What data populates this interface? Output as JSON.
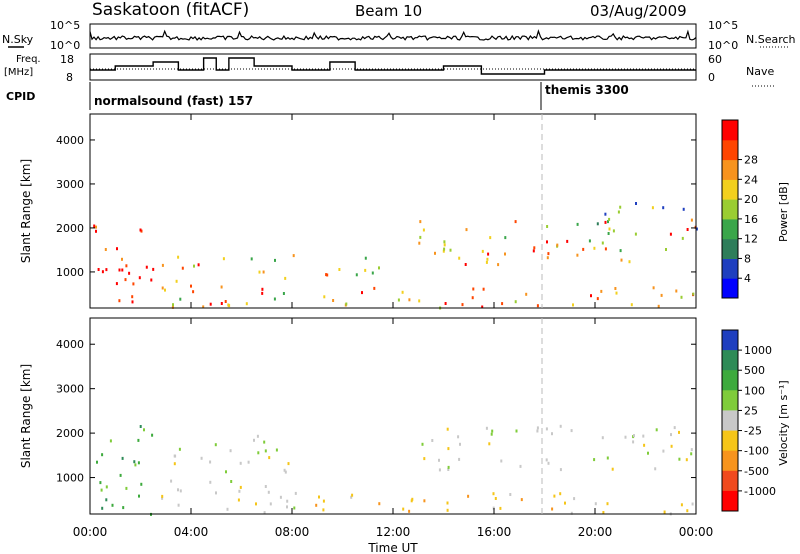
{
  "header": {
    "station": "Saskatoon (fitACF)",
    "beam": "Beam 10",
    "date": "03/Aug/2009"
  },
  "aux_labels": {
    "nsky": "N.Sky",
    "nsearch": "N.Search",
    "freq_line1": "Freq.",
    "freq_line2": "[MHz]",
    "nave": "Nave",
    "cpid": "CPID",
    "noise_tick_top": "10^5",
    "noise_tick_bottom": "10^0",
    "freq_tick_top": "18",
    "freq_tick_bottom": "8",
    "nave_tick_top": "60",
    "nave_tick_bottom": "0"
  },
  "cpid_entries": [
    {
      "label": "normalsound (fast) 157",
      "start_hour": 0
    },
    {
      "label": "themis 3300",
      "start_hour": 18
    }
  ],
  "x_axis": {
    "label": "Time UT",
    "ticks": [
      "00:00",
      "04:00",
      "08:00",
      "12:00",
      "16:00",
      "20:00",
      "00:00"
    ],
    "range_hours": [
      0,
      24
    ]
  },
  "y_axis": {
    "label": "Slant Range [km]",
    "ticks": [
      "1000",
      "2000",
      "3000",
      "4000"
    ],
    "range_km": [
      180,
      4590
    ]
  },
  "power_scale": {
    "label": "Power [dB]",
    "ticks": [
      "4",
      "8",
      "12",
      "16",
      "20",
      "24",
      "28"
    ],
    "colors": [
      "#0000ff",
      "#1f3fbf",
      "#2e7d5a",
      "#3aa64a",
      "#9acd32",
      "#f2d01e",
      "#f7931e",
      "#ff4500",
      "#ff0000"
    ]
  },
  "velocity_scale": {
    "label": "Velocity [m s⁻¹]",
    "ticks": [
      "1000",
      "500",
      "100",
      "25",
      "-25",
      "-100",
      "-500",
      "-1000"
    ],
    "colors": [
      "#1f3fbf",
      "#2e8b57",
      "#3daa3d",
      "#7fcc3a",
      "#c8c8c8",
      "#f5c518",
      "#f7941d",
      "#f04a1e",
      "#ff0000"
    ]
  },
  "chart_data": [
    {
      "type": "heatmap",
      "title": "Power",
      "xlabel": "Time UT",
      "ylabel": "Slant Range [km]",
      "xlim_hours": [
        0,
        24
      ],
      "ylim_km": [
        180,
        4590
      ],
      "colorbar_label": "Power [dB]",
      "scatter_regions": [
        {
          "t0": 0.0,
          "t1": 2.5,
          "r0": 200,
          "r1": 2200,
          "level": 0.9
        },
        {
          "t0": 2.8,
          "t1": 8.2,
          "r0": 200,
          "r1": 1500,
          "level": 0.55
        },
        {
          "t0": 1.5,
          "t1": 2.5,
          "r0": 1600,
          "r1": 2000,
          "level": 0.7
        },
        {
          "t0": 8.8,
          "t1": 24.0,
          "r0": 200,
          "r1": 700,
          "level": 0.6
        },
        {
          "t0": 9.0,
          "t1": 11.5,
          "r0": 700,
          "r1": 1400,
          "level": 0.45
        },
        {
          "t0": 13.0,
          "t1": 24.0,
          "r0": 1200,
          "r1": 2200,
          "level": 0.7
        },
        {
          "t0": 20.0,
          "t1": 24.0,
          "r0": 2000,
          "r1": 2700,
          "level": 0.45
        }
      ]
    },
    {
      "type": "heatmap",
      "title": "Velocity",
      "xlabel": "Time UT",
      "ylabel": "Slant Range [km]",
      "xlim_hours": [
        0,
        24
      ],
      "ylim_km": [
        180,
        4590
      ],
      "colorbar_label": "Velocity [m s⁻¹]",
      "scatter_regions": [
        {
          "t0": 0.0,
          "t1": 2.5,
          "r0": 200,
          "r1": 2200,
          "level": "green"
        },
        {
          "t0": 2.8,
          "t1": 8.2,
          "r0": 200,
          "r1": 2000,
          "level": "grey"
        },
        {
          "t0": 8.8,
          "t1": 24.0,
          "r0": 200,
          "r1": 700,
          "level": "orange"
        },
        {
          "t0": 13.0,
          "t1": 24.0,
          "r0": 1200,
          "r1": 2200,
          "level": "grey"
        }
      ]
    }
  ]
}
